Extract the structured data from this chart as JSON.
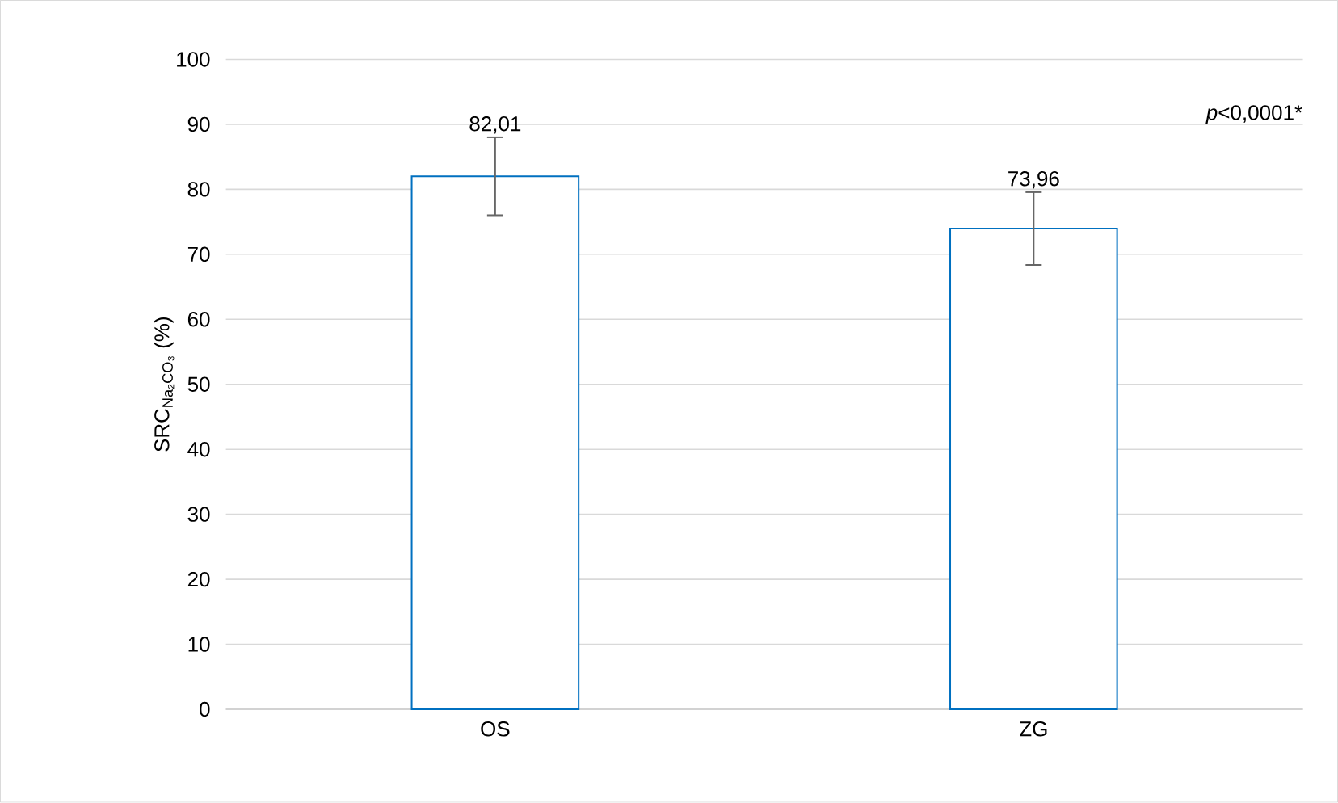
{
  "chart_data": {
    "type": "bar",
    "ylabel": "SRC$_{Na₂CO₃}$ (%)",
    "categories": [
      "OS",
      "ZG"
    ],
    "values": [
      82.01,
      73.96
    ],
    "errors": [
      6,
      5.6
    ],
    "value_labels": [
      "82,01",
      "73,96"
    ],
    "color": "#0070c0",
    "ylim": [
      0,
      100
    ],
    "yticks": [
      0,
      10,
      20,
      30,
      40,
      50,
      60,
      70,
      80,
      90,
      100
    ],
    "grid": "y",
    "annotations": [
      "*p*<0,0001*"
    ]
  }
}
